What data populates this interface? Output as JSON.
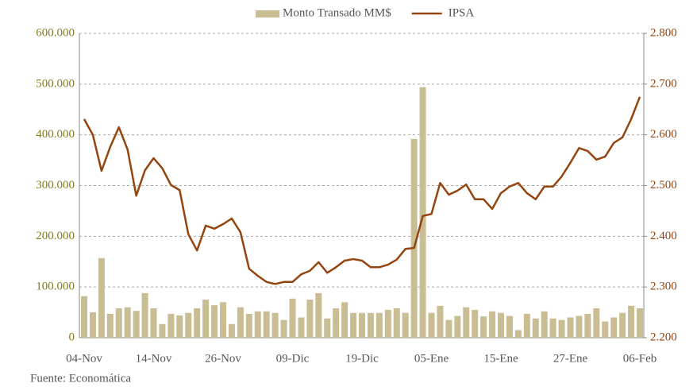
{
  "chart_data": {
    "type": "bar_line",
    "source": "Fuente: Economática",
    "categories": [
      "04-Nov",
      null,
      null,
      null,
      null,
      null,
      null,
      null,
      "14-Nov",
      null,
      null,
      null,
      null,
      null,
      null,
      null,
      "26-Nov",
      null,
      null,
      null,
      null,
      null,
      null,
      null,
      "09-Dic",
      null,
      null,
      null,
      null,
      null,
      null,
      null,
      "19-Dic",
      null,
      null,
      null,
      null,
      null,
      null,
      null,
      "05-Ene",
      null,
      null,
      null,
      null,
      null,
      null,
      null,
      "15-Ene",
      null,
      null,
      null,
      null,
      null,
      null,
      null,
      "27-Ene",
      null,
      null,
      null,
      null,
      null,
      null,
      null,
      "06-Feb"
    ],
    "series": [
      {
        "name": "Monto Transado MM$",
        "type": "bar",
        "color": "#c8bd93",
        "values": [
          82000,
          50000,
          157000,
          47000,
          58000,
          60000,
          53000,
          88000,
          58000,
          27000,
          47000,
          44000,
          49000,
          58000,
          75000,
          64000,
          70000,
          27000,
          60000,
          47000,
          52000,
          52000,
          49000,
          35000,
          77000,
          40000,
          75000,
          88000,
          38000,
          58000,
          70000,
          49000,
          49000,
          49000,
          49000,
          55000,
          58000,
          49000,
          392000,
          494000,
          49000,
          63000,
          35000,
          43000,
          60000,
          55000,
          42000,
          52000,
          49000,
          43000,
          15000,
          47000,
          38000,
          52000,
          38000,
          35000,
          40000,
          43000,
          47000,
          58000,
          32000,
          40000,
          49000,
          63000,
          58000
        ]
      },
      {
        "name": "IPSA",
        "type": "line",
        "axis": "y2",
        "color": "#94450f",
        "values": [
          2.631,
          2.6,
          2.529,
          2.576,
          2.615,
          2.571,
          2.48,
          2.53,
          2.554,
          2.534,
          2.501,
          2.491,
          2.404,
          2.372,
          2.421,
          2.415,
          2.424,
          2.435,
          2.408,
          2.336,
          2.322,
          2.31,
          2.306,
          2.31,
          2.31,
          2.325,
          2.332,
          2.349,
          2.328,
          2.339,
          2.352,
          2.355,
          2.352,
          2.339,
          2.339,
          2.344,
          2.354,
          2.375,
          2.377,
          2.44,
          2.444,
          2.505,
          2.482,
          2.49,
          2.502,
          2.473,
          2.473,
          2.454,
          2.485,
          2.498,
          2.505,
          2.485,
          2.473,
          2.498,
          2.498,
          2.518,
          2.545,
          2.574,
          2.568,
          2.551,
          2.557,
          2.584,
          2.595,
          2.631,
          2.675
        ]
      }
    ],
    "ylim": [
      0,
      600000
    ],
    "yticks": [
      0,
      {
        "value": 100000,
        "label": "100.000"
      },
      {
        "value": 200000,
        "label": "200.000"
      },
      {
        "value": 300000,
        "label": "300.000"
      },
      {
        "value": 400000,
        "label": "400.000"
      },
      {
        "value": 500000,
        "label": "500.000"
      },
      {
        "value": 600000,
        "label": "600.000"
      }
    ],
    "y2lim": [
      2.2,
      2.8
    ],
    "y2ticks": [
      {
        "value": 2.2,
        "label": "2.200"
      },
      {
        "value": 2.3,
        "label": "2.300"
      },
      {
        "value": 2.4,
        "label": "2.400"
      },
      {
        "value": 2.5,
        "label": "2.500"
      },
      {
        "value": 2.6,
        "label": "2.600"
      },
      {
        "value": 2.7,
        "label": "2.700"
      },
      {
        "value": 2.8,
        "label": "2.800"
      }
    ],
    "grid": true,
    "legend": "top"
  }
}
